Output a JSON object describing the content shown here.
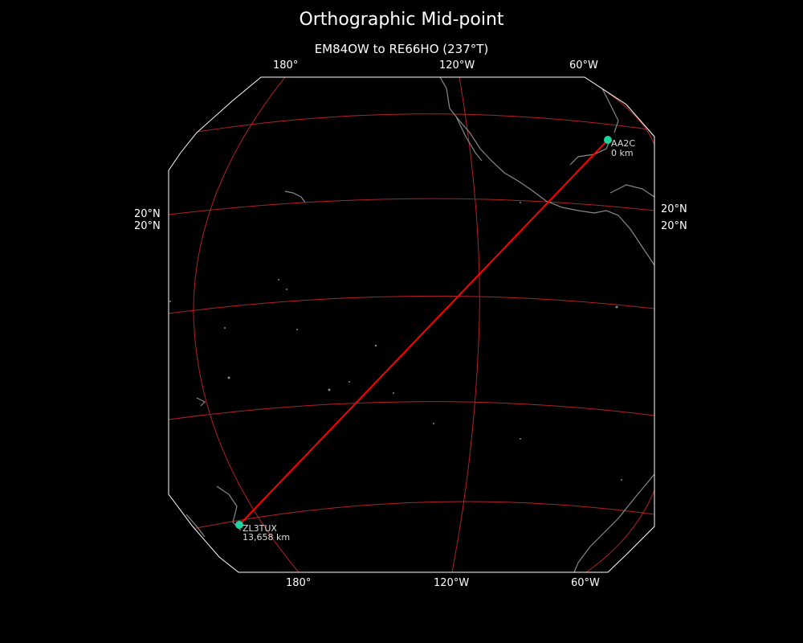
{
  "title": "Orthographic Mid-point",
  "subtitle": "EM84OW to RE66HO (237°T)",
  "top_lon_labels": [
    "180°",
    "120°W",
    "60°W"
  ],
  "bottom_lon_labels": [
    "180°",
    "120°W",
    "60°W"
  ],
  "left_lat_labels": [
    "20°N",
    "20°N"
  ],
  "right_lat_labels": [
    "20°N",
    "20°N"
  ],
  "stations": [
    {
      "call": "AA2C",
      "distance": "0 km"
    },
    {
      "call": "ZL3TUX",
      "distance": "13,658 km"
    }
  ],
  "colors": {
    "background": "#000000",
    "path": "#ff0000",
    "gridlines": "#b22222",
    "coastline": "#888888",
    "station_marker": "#1dd3a0",
    "map_border": "#ffffff"
  }
}
